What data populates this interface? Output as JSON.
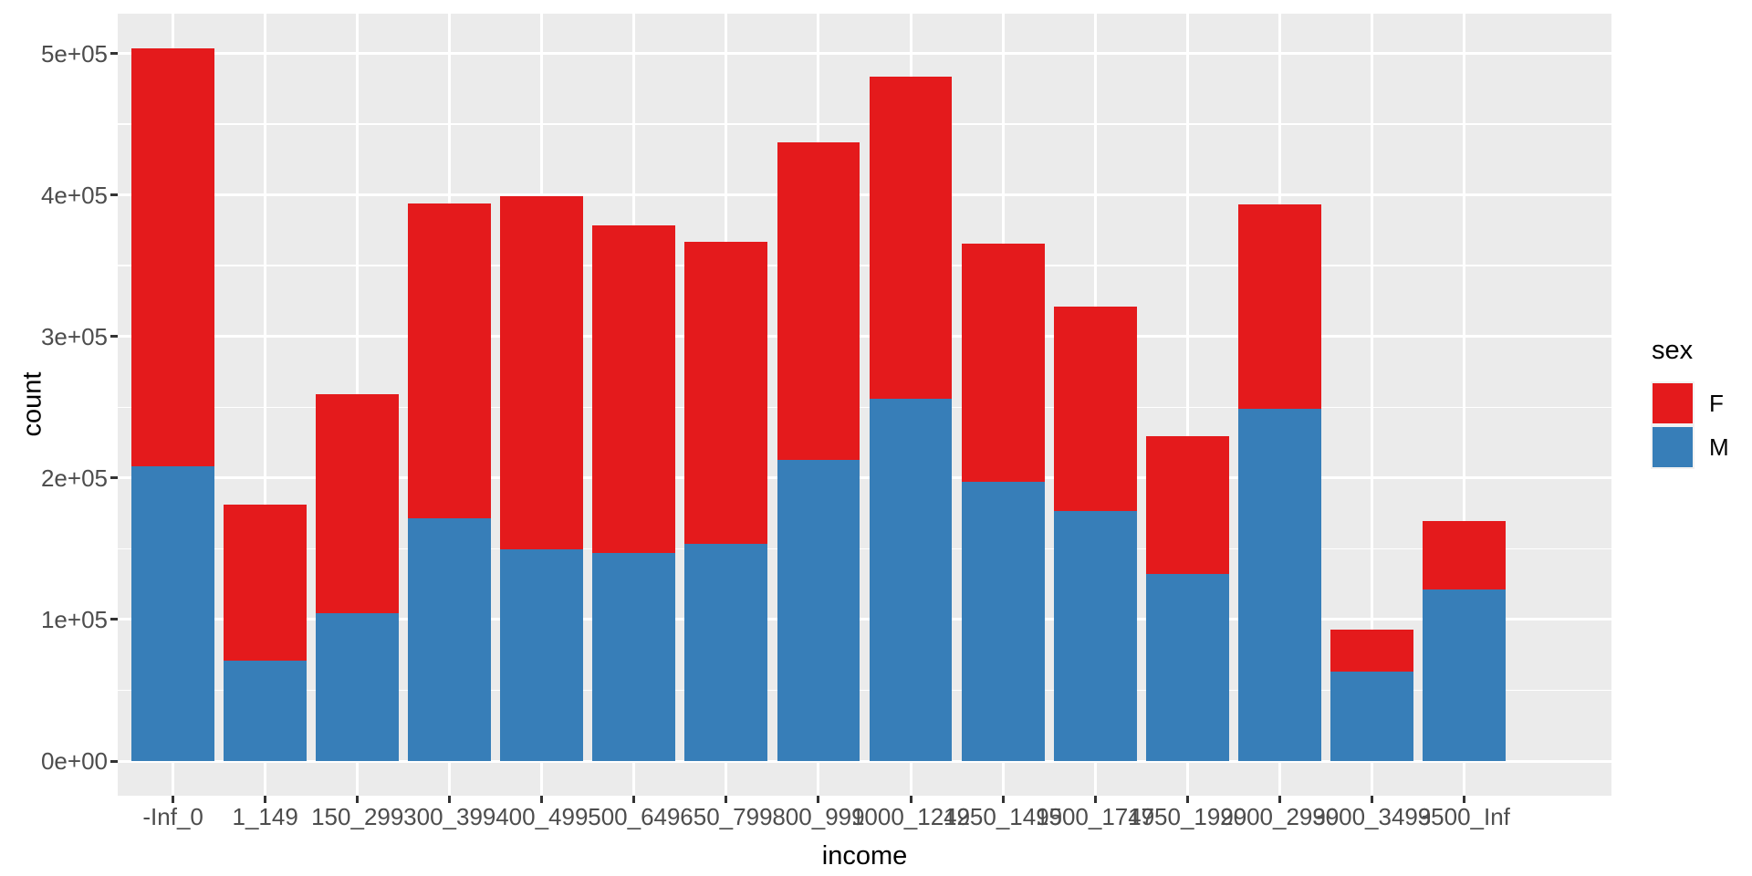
{
  "chart_data": {
    "type": "bar",
    "stacked": true,
    "xlabel": "income",
    "ylabel": "count",
    "legend_title": "sex",
    "legend_position": "right",
    "grid": true,
    "categories": [
      "-Inf_0",
      "1_149",
      "150_299",
      "300_399",
      "400_499",
      "500_649",
      "650_799",
      "800_999",
      "1000_1249",
      "1250_1499",
      "1500_1749",
      "1750_1999",
      "2000_2999",
      "3000_3499",
      "3500_Inf"
    ],
    "series": [
      {
        "name": "F",
        "color": "#E41A1C",
        "values": [
          295000,
          110000,
          155000,
          222500,
          249500,
          231500,
          213500,
          224500,
          227500,
          168000,
          144500,
          97500,
          144500,
          30000,
          48500
        ]
      },
      {
        "name": "M",
        "color": "#377EB8",
        "values": [
          208500,
          71000,
          104500,
          171500,
          149500,
          147000,
          153500,
          213000,
          256000,
          197500,
          176500,
          132000,
          249000,
          63000,
          121000
        ]
      }
    ],
    "stack_order_bottom_to_top": [
      "M",
      "F"
    ],
    "totals": [
      503500,
      181000,
      259500,
      394000,
      399000,
      378500,
      367000,
      437500,
      483500,
      365500,
      321000,
      229500,
      393500,
      93000,
      169500
    ],
    "y_ticks": [
      {
        "value": 0,
        "label": "0e+00"
      },
      {
        "value": 100000,
        "label": "1e+05"
      },
      {
        "value": 200000,
        "label": "2e+05"
      },
      {
        "value": 300000,
        "label": "3e+05"
      },
      {
        "value": 400000,
        "label": "4e+05"
      },
      {
        "value": 500000,
        "label": "5e+05"
      }
    ],
    "ylim": [
      -24500,
      528100
    ],
    "panel_background": "#EBEBEB",
    "gridline_color": "#ffffff",
    "axis_text_color": "#4D4D4D",
    "tick_mark_color": "#333333"
  }
}
